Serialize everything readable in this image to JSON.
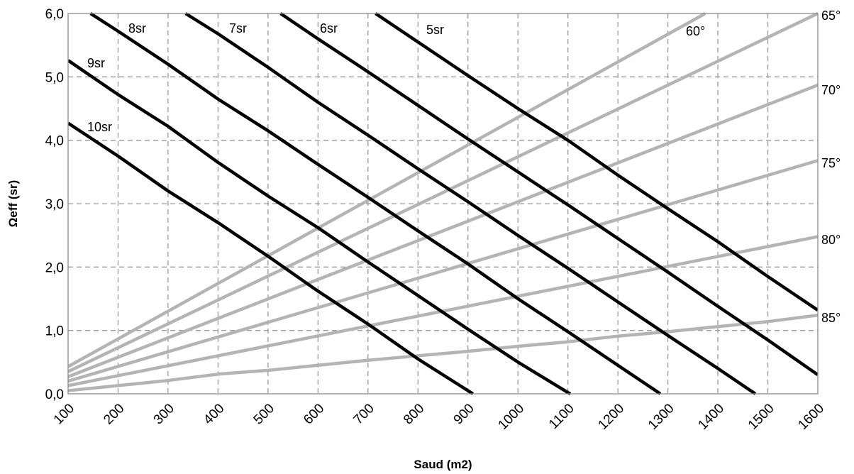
{
  "chart_data": {
    "type": "line",
    "xlabel": "Saud (m2)",
    "ylabel": "Ωeff (sr)",
    "xlim": [
      100,
      1600
    ],
    "ylim": [
      0,
      6
    ],
    "x_ticks": [
      "100",
      "200",
      "300",
      "400",
      "500",
      "600",
      "700",
      "800",
      "900",
      "1000",
      "1100",
      "1200",
      "1300",
      "1400",
      "1500",
      "1600"
    ],
    "y_ticks": [
      "0,0",
      "1,0",
      "2,0",
      "3,0",
      "4,0",
      "5,0",
      "6,0"
    ],
    "grid": true,
    "colors": {
      "black_series": "#000000",
      "gray_series": "#b4b4b4"
    },
    "series_black": [
      {
        "name": "10sr",
        "x": [
          100,
          200,
          300,
          400,
          500,
          600,
          700,
          800,
          900,
          910
        ],
        "y": [
          4.27,
          3.75,
          3.2,
          2.7,
          2.17,
          1.62,
          1.1,
          0.55,
          0.05,
          0.0
        ]
      },
      {
        "name": "9sr",
        "x": [
          100,
          200,
          300,
          400,
          500,
          600,
          700,
          800,
          900,
          1000,
          1100,
          1105
        ],
        "y": [
          5.26,
          4.72,
          4.22,
          3.65,
          3.12,
          2.62,
          2.08,
          1.55,
          1.02,
          0.5,
          0.02,
          0.0
        ]
      },
      {
        "name": "8sr",
        "x": [
          145,
          200,
          300,
          400,
          500,
          600,
          700,
          800,
          900,
          1000,
          1100,
          1200,
          1285
        ],
        "y": [
          6.0,
          5.72,
          5.2,
          4.65,
          4.15,
          3.62,
          3.1,
          2.57,
          2.05,
          1.5,
          0.98,
          0.45,
          0.0
        ]
      },
      {
        "name": "7sr",
        "x": [
          335,
          400,
          500,
          600,
          700,
          800,
          900,
          1000,
          1100,
          1200,
          1300,
          1400,
          1475
        ],
        "y": [
          6.0,
          5.68,
          5.15,
          4.6,
          4.08,
          3.55,
          3.03,
          2.5,
          1.98,
          1.45,
          0.92,
          0.4,
          0.0
        ]
      },
      {
        "name": "6sr",
        "x": [
          525,
          600,
          700,
          800,
          900,
          1000,
          1100,
          1200,
          1300,
          1400,
          1500,
          1600
        ],
        "y": [
          6.0,
          5.6,
          5.08,
          4.55,
          4.02,
          3.5,
          2.98,
          2.45,
          1.92,
          1.38,
          0.85,
          0.3
        ]
      },
      {
        "name": "5sr",
        "x": [
          715,
          800,
          900,
          1000,
          1100,
          1200,
          1300,
          1400,
          1500,
          1600
        ],
        "y": [
          6.0,
          5.55,
          5.02,
          4.5,
          4.0,
          3.45,
          2.92,
          2.4,
          1.85,
          1.32
        ]
      }
    ],
    "series_gray": [
      {
        "name": "60°",
        "x": [
          100,
          1375
        ],
        "y": [
          0.43,
          6.0
        ]
      },
      {
        "name": "65°",
        "x": [
          100,
          1600
        ],
        "y": [
          0.35,
          6.0
        ]
      },
      {
        "name": "70°",
        "x": [
          100,
          1600
        ],
        "y": [
          0.27,
          4.87
        ]
      },
      {
        "name": "75°",
        "x": [
          100,
          1600
        ],
        "y": [
          0.2,
          3.68
        ]
      },
      {
        "name": "80°",
        "x": [
          100,
          1600
        ],
        "y": [
          0.13,
          2.48
        ]
      },
      {
        "name": "85°",
        "x": [
          100,
          300,
          400,
          500,
          600,
          700,
          800,
          900,
          1000,
          1100,
          1200,
          1300,
          1400,
          1500,
          1600
        ],
        "y": [
          0.05,
          0.21,
          0.31,
          0.37,
          0.45,
          0.53,
          0.6,
          0.67,
          0.75,
          0.82,
          0.91,
          0.98,
          1.06,
          1.14,
          1.24
        ]
      }
    ]
  }
}
